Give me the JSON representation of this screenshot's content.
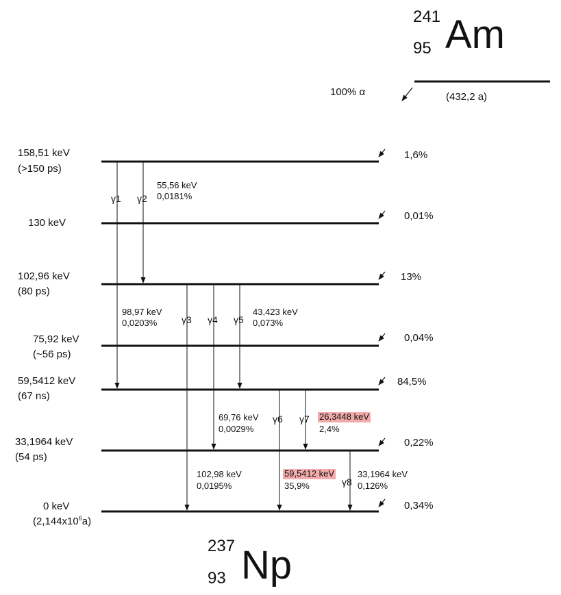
{
  "parent": {
    "mass": "241",
    "z": "95",
    "symbol": "Am",
    "half_life": "(432,2 a)",
    "alpha": "100% α"
  },
  "daughter": {
    "mass": "237",
    "z": "93",
    "symbol": "Np"
  },
  "levels": [
    {
      "energy": "158,51 keV",
      "life": "(>150 ps)",
      "feed": "1,6%"
    },
    {
      "energy": "130 keV",
      "life": "",
      "feed": "0,01%"
    },
    {
      "energy": "102,96 keV",
      "life": "(80 ps)",
      "feed": "13%"
    },
    {
      "energy": "75,92 keV",
      "life": "(~56 ps)",
      "feed": "0,04%"
    },
    {
      "energy": "59,5412 keV",
      "life": "(67 ns)",
      "feed": "84,5%"
    },
    {
      "energy": "33,1964 keV",
      "life": "(54 ps)",
      "feed": "0,22%"
    },
    {
      "energy": "0 keV",
      "life": "(2,144x10",
      "life_exp": "6",
      "life_end": "a)",
      "feed": "0,34%"
    }
  ],
  "gammas": [
    {
      "label": "γ1",
      "energy": "98,97 keV",
      "intensity": "0,0203%"
    },
    {
      "label": "γ2",
      "energy": "55,56 keV",
      "intensity": "0,0181%"
    },
    {
      "label": "γ3",
      "energy": "102,98 keV",
      "intensity": "0,0195%"
    },
    {
      "label": "γ4",
      "energy": "69,76 keV",
      "intensity": "0,0029%"
    },
    {
      "label": "γ5",
      "energy": "43,423 keV",
      "intensity": "0,073%"
    },
    {
      "label": "γ6",
      "energy": "59,5412 keV",
      "intensity": "35,9%",
      "highlight": true
    },
    {
      "label": "γ7",
      "energy": "26,3448 keV",
      "intensity": "2,4%",
      "highlight": true
    },
    {
      "label": "γ8",
      "energy": "33,1964 keV",
      "intensity": "0,126%"
    }
  ]
}
